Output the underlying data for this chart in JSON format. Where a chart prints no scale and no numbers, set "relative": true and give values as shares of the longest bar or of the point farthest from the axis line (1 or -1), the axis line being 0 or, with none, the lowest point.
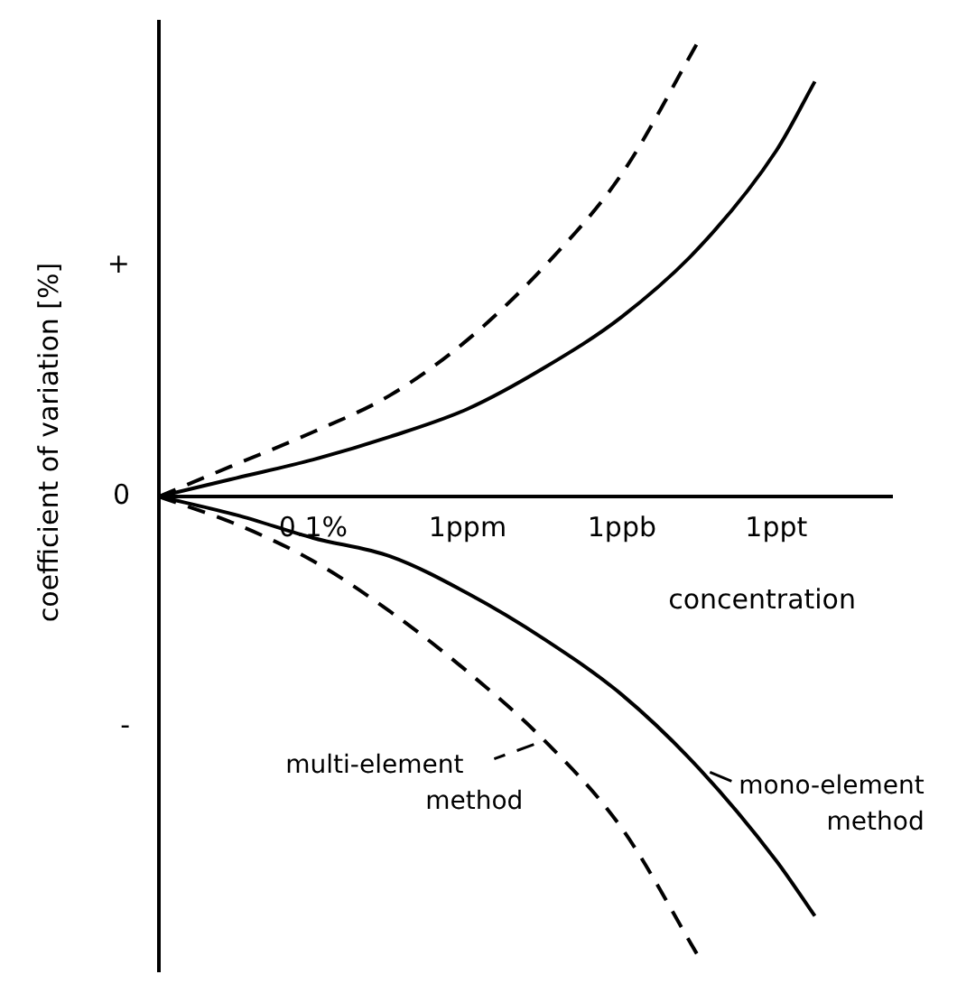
{
  "chart_data": {
    "type": "line",
    "relative": true,
    "xlabel": "concentration",
    "ylabel": "coefficient of variation [%]",
    "categories": [
      null,
      null,
      null,
      null,
      "0.1%",
      null,
      null,
      null,
      "1ppm",
      null,
      null,
      null,
      "1ppb",
      null,
      null,
      null,
      "1ppt",
      null,
      null,
      null
    ],
    "series": [
      {
        "color": "#000000",
        "line_style": "solid",
        "values": [
          0,
          null,
          0.04,
          null,
          0.08,
          null,
          0.13,
          null,
          0.19,
          null,
          0.28,
          null,
          0.39,
          null,
          0.54,
          null,
          0.75,
          0.9,
          null,
          null
        ]
      },
      {
        "color": "#000000",
        "line_style": "dashed",
        "values": [
          0,
          null,
          0.07,
          null,
          0.14,
          null,
          0.22,
          null,
          0.34,
          null,
          0.5,
          null,
          0.7,
          null,
          0.99,
          null,
          null,
          null,
          null,
          null
        ]
      },
      {
        "name": "mono-element method",
        "color": "#000000",
        "line_style": "solid",
        "values": [
          0,
          null,
          -0.04,
          null,
          -0.09,
          null,
          -0.13,
          null,
          -0.21,
          null,
          -0.31,
          null,
          -0.43,
          null,
          -0.59,
          null,
          -0.79,
          -0.91,
          null,
          null
        ]
      },
      {
        "name": "multi-element method",
        "color": "#000000",
        "line_style": "dashed",
        "values": [
          0,
          null,
          -0.06,
          null,
          -0.14,
          null,
          -0.25,
          null,
          -0.38,
          null,
          -0.53,
          null,
          -0.72,
          null,
          -1,
          null,
          null,
          null,
          null,
          null
        ]
      }
    ],
    "annotations": [
      "+",
      "0",
      "-"
    ],
    "marker": "none",
    "grid": false,
    "legend": "bottom right"
  }
}
